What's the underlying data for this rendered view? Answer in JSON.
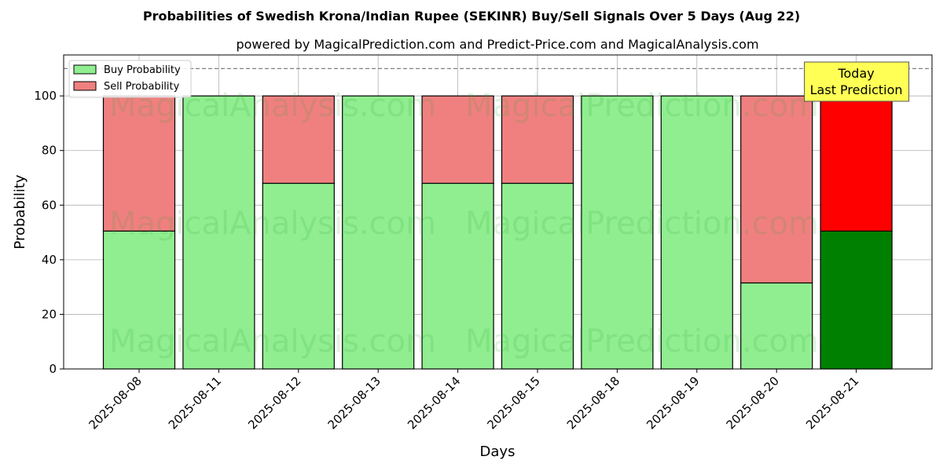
{
  "chart_data": {
    "type": "bar",
    "stacked": true,
    "title": "Probabilities of Swedish Krona/Indian Rupee (SEKINR) Buy/Sell Signals Over 5 Days (Aug 22)",
    "subtitle": "powered by MagicalPrediction.com and Predict-Price.com and MagicalAnalysis.com",
    "xlabel": "Days",
    "ylabel": "Probability",
    "ylim": [
      0,
      115
    ],
    "yticks": [
      0,
      20,
      40,
      60,
      80,
      100
    ],
    "grid": true,
    "legend_position": "top-left",
    "categories": [
      "2025-08-08",
      "2025-08-11",
      "2025-08-12",
      "2025-08-13",
      "2025-08-14",
      "2025-08-15",
      "2025-08-18",
      "2025-08-19",
      "2025-08-20",
      "2025-08-21"
    ],
    "series": [
      {
        "name": "Buy Probability",
        "color": "#90ee90",
        "values": [
          50.5,
          100,
          68,
          100,
          68,
          68,
          100,
          100,
          31.5,
          50.5
        ]
      },
      {
        "name": "Sell Probability",
        "color": "#f08080",
        "values": [
          49.5,
          0,
          32,
          0,
          32,
          32,
          0,
          0,
          68.5,
          49.5
        ]
      }
    ],
    "highlight": {
      "index": 9,
      "buy_color": "#008000",
      "sell_color": "#ff0000"
    },
    "reference_line": {
      "y": 110,
      "style": "dashed",
      "color": "#808080"
    },
    "annotation": {
      "lines": [
        "Today",
        "Last Prediction"
      ],
      "background": "#ffff55"
    },
    "watermarks": [
      "MagicalAnalysis.com",
      "MagicalPrediction.com"
    ]
  }
}
